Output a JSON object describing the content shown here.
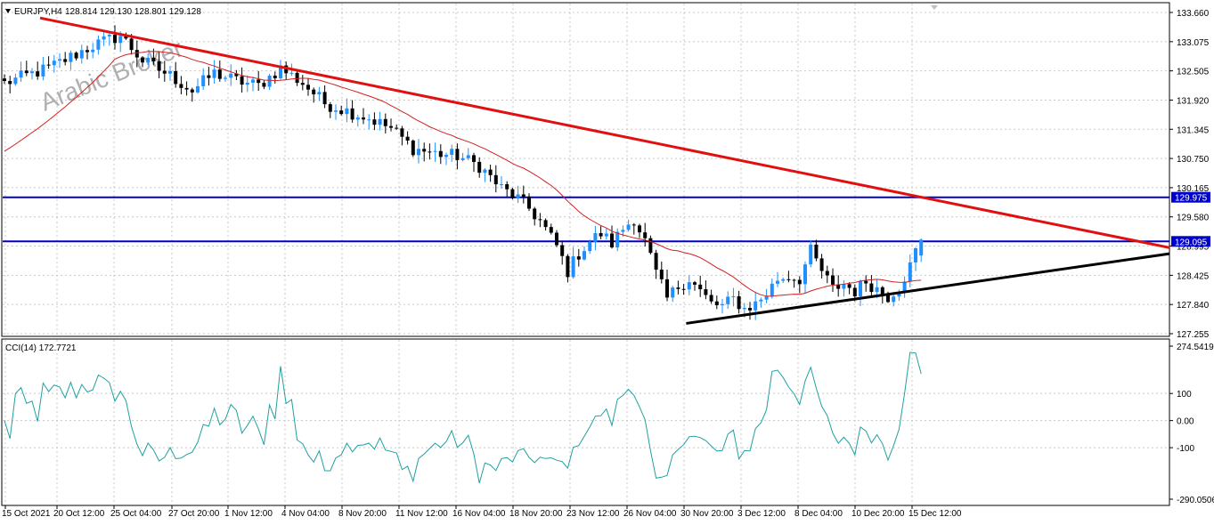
{
  "header": {
    "symbol_info": "EURJPY,H4",
    "ohlc": "128.814 129.130 128.801 129.128"
  },
  "watermark": "Arabic Broker",
  "colors": {
    "bull": "#1e90ff",
    "bear": "#000000",
    "ma": "#d42020",
    "cci": "#20a0a0",
    "resistance_trend": "#e01010",
    "support_trend": "#000000",
    "hline": "#0000cc",
    "hline_label_bg": "#0000cc",
    "grid": "#c8c8c8"
  },
  "chart_data": [
    {
      "type": "candlestick",
      "title": "EURJPY,H4",
      "ylim": [
        127.255,
        133.66
      ],
      "y_ticks": [
        "133.660",
        "133.075",
        "132.505",
        "131.920",
        "131.345",
        "130.750",
        "130.165",
        "129.580",
        "128.995",
        "128.425",
        "127.840",
        "127.255"
      ],
      "x_ticks": [
        "15 Oct 2021",
        "20 Oct 12:00",
        "25 Oct 04:00",
        "27 Oct 20:00",
        "1 Nov 12:00",
        "4 Nov 04:00",
        "8 Nov 20:00",
        "11 Nov 12:00",
        "16 Nov 04:00",
        "18 Nov 20:00",
        "23 Nov 12:00",
        "26 Nov 04:00",
        "30 Nov 20:00",
        "3 Dec 12:00",
        "8 Dec 04:00",
        "10 Dec 20:00",
        "15 Dec 12:00"
      ],
      "close_path": [
        [
          0,
          132.25
        ],
        [
          8,
          132.55
        ],
        [
          16,
          133.0
        ],
        [
          21,
          133.2
        ],
        [
          25,
          132.7
        ],
        [
          30,
          132.4
        ],
        [
          34,
          132.1
        ],
        [
          38,
          132.45
        ],
        [
          42,
          132.3
        ],
        [
          46,
          132.2
        ],
        [
          50,
          132.55
        ],
        [
          54,
          132.25
        ],
        [
          58,
          131.85
        ],
        [
          62,
          131.7
        ],
        [
          66,
          131.55
        ],
        [
          70,
          131.35
        ],
        [
          74,
          130.95
        ],
        [
          78,
          130.85
        ],
        [
          82,
          130.8
        ],
        [
          86,
          130.6
        ],
        [
          90,
          130.15
        ],
        [
          93,
          129.95
        ],
        [
          95,
          129.75
        ],
        [
          97,
          129.5
        ],
        [
          100,
          129.0
        ],
        [
          102,
          128.5
        ],
        [
          104,
          128.85
        ],
        [
          106,
          129.1
        ],
        [
          108,
          129.25
        ],
        [
          110,
          129.05
        ],
        [
          112,
          129.35
        ],
        [
          114,
          129.55
        ],
        [
          116,
          129.1
        ],
        [
          118,
          128.45
        ],
        [
          120,
          127.95
        ],
        [
          122,
          128.2
        ],
        [
          124,
          128.35
        ],
        [
          126,
          128.1
        ],
        [
          128,
          127.85
        ],
        [
          130,
          127.8
        ],
        [
          132,
          127.95
        ],
        [
          134,
          127.75
        ],
        [
          136,
          127.85
        ],
        [
          138,
          128.05
        ],
        [
          140,
          128.35
        ],
        [
          142,
          128.4
        ],
        [
          144,
          128.35
        ],
        [
          146,
          128.9
        ],
        [
          148,
          128.5
        ],
        [
          150,
          128.15
        ],
        [
          152,
          128.25
        ],
        [
          154,
          128.1
        ],
        [
          156,
          128.3
        ],
        [
          158,
          128.15
        ],
        [
          160,
          128.0
        ],
        [
          162,
          128.2
        ],
        [
          164,
          128.6
        ],
        [
          165,
          128.9
        ],
        [
          166,
          129.13
        ]
      ],
      "ma_period": 20,
      "horizontal_levels": [
        {
          "value": 129.975,
          "label": "129.975"
        },
        {
          "value": 129.095,
          "label": "129.095"
        }
      ],
      "trendlines": [
        {
          "name": "resistance",
          "from": [
            0,
            133.55
          ],
          "to": [
            188,
            128.97
          ]
        },
        {
          "name": "support",
          "from": [
            117,
            127.46
          ],
          "to": [
            188,
            128.85
          ]
        }
      ]
    },
    {
      "type": "line",
      "title": "CCI(14) 172.7721",
      "ylim": [
        -290.0506,
        274.5419
      ],
      "y_ticks": [
        "274.5419",
        "100",
        "0.00",
        "-100",
        "-290.0506"
      ],
      "last_value": 172.7721
    }
  ]
}
